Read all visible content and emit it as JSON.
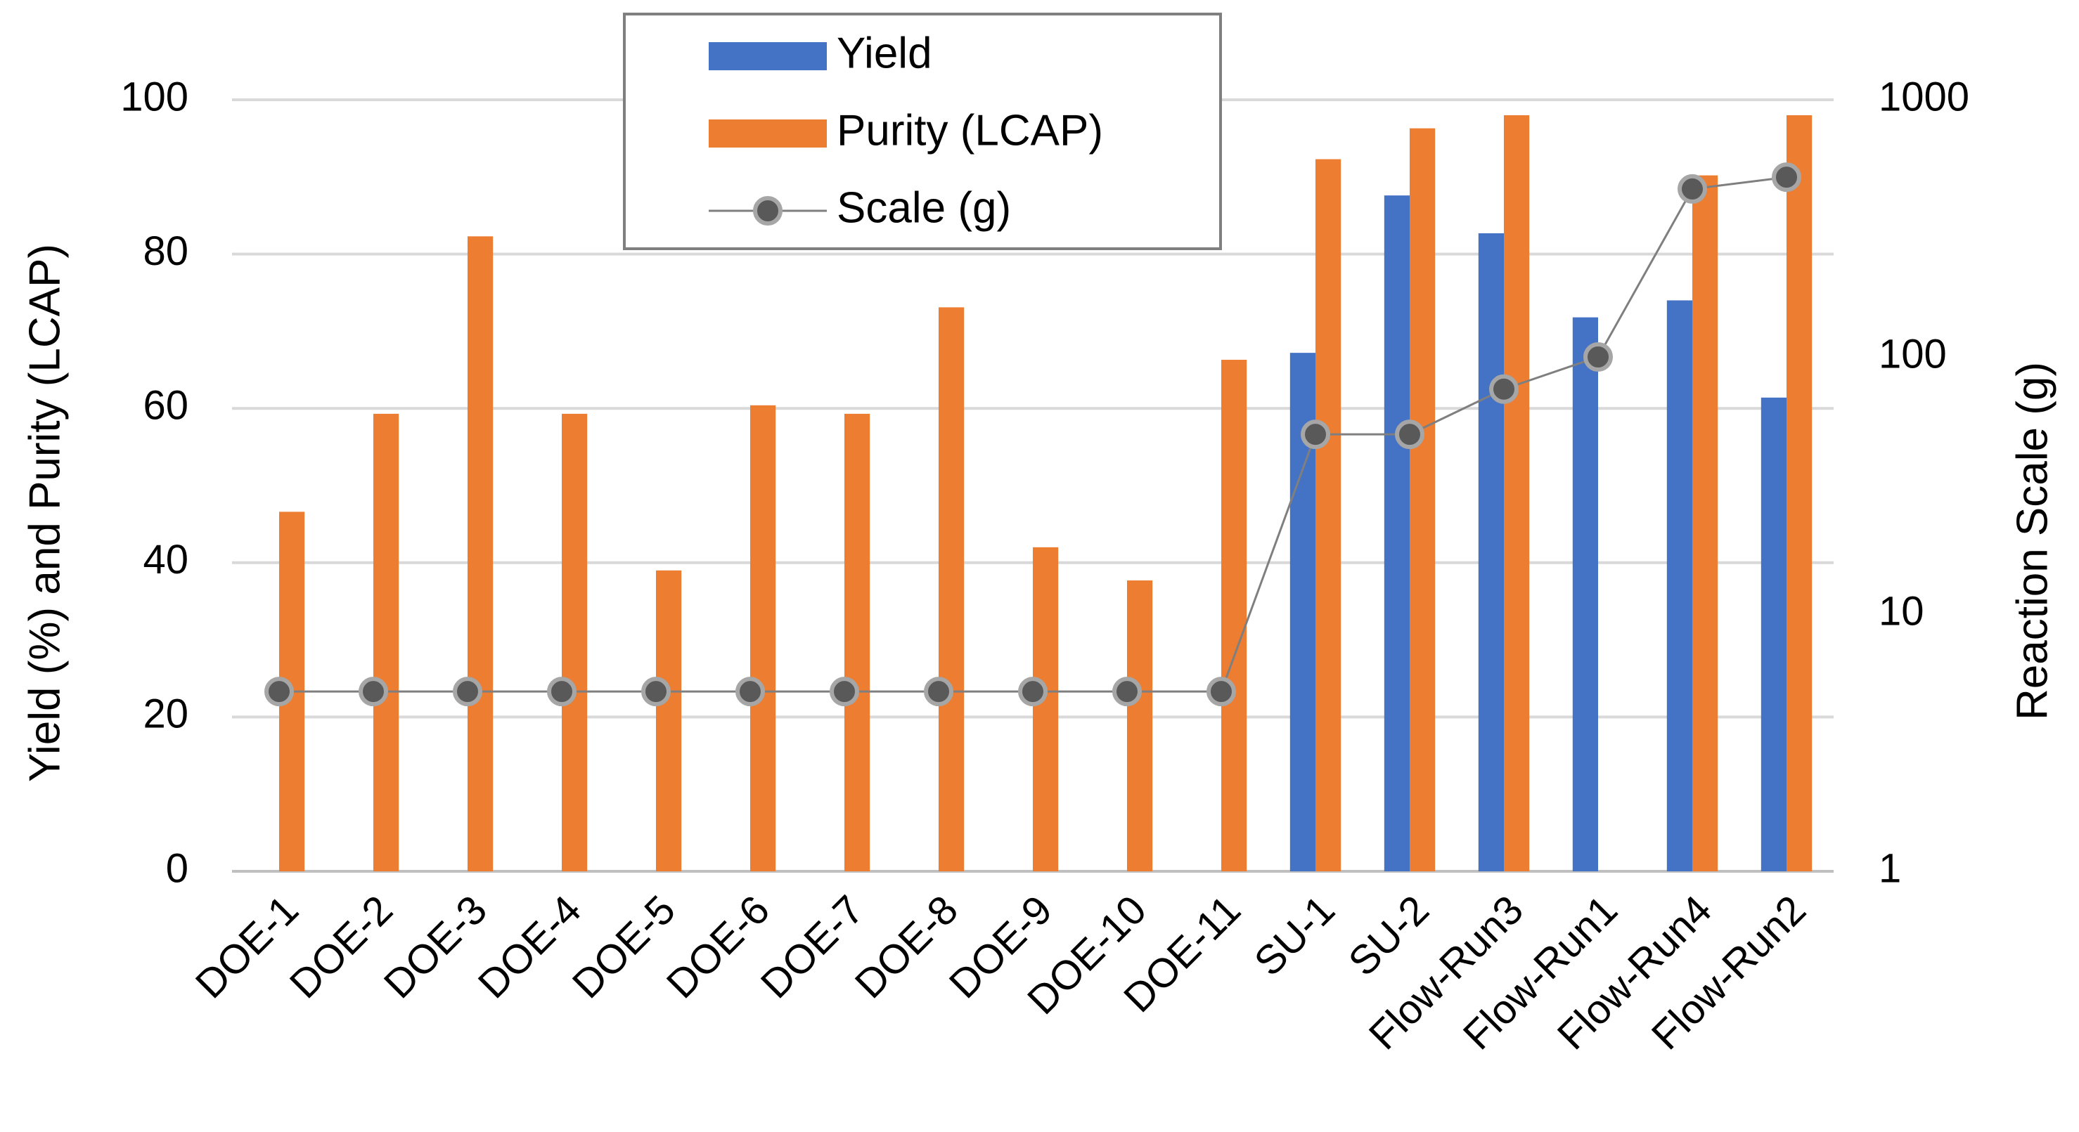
{
  "chart_data": {
    "type": "bar",
    "categories": [
      "DOE-1",
      "DOE-2",
      "DOE-3",
      "DOE-4",
      "DOE-5",
      "DOE-6",
      "DOE-7",
      "DOE-8",
      "DOE-9",
      "DOE-10",
      "DOE-11",
      "SU-1",
      "SU-2",
      "Flow-Run3",
      "Flow-Run1",
      "Flow-Run4",
      "Flow-Run2"
    ],
    "series": [
      {
        "name": "Yield",
        "type": "bar",
        "axis": "left",
        "color": "#4472C4",
        "values": [
          null,
          null,
          null,
          null,
          null,
          null,
          null,
          null,
          null,
          null,
          null,
          67.2,
          87.6,
          82.7,
          71.8,
          74.0,
          61.4
        ]
      },
      {
        "name": "Purity (LCAP)",
        "type": "bar",
        "axis": "left",
        "color": "#ED7D31",
        "values": [
          46.6,
          59.3,
          82.3,
          59.3,
          39.0,
          60.4,
          59.3,
          73.1,
          42.0,
          37.7,
          66.3,
          92.3,
          96.3,
          98.0,
          null,
          90.2,
          98.0
        ]
      },
      {
        "name": "Scale (g)",
        "type": "line",
        "axis": "right",
        "color": "#7F7F7F",
        "values": [
          5,
          5,
          5,
          5,
          5,
          5,
          5,
          5,
          5,
          5,
          5,
          50,
          50,
          75,
          100,
          450,
          500
        ]
      }
    ],
    "xlabel": "",
    "ylabel": "Yield (%) and Purity (LCAP)",
    "y2label": "Reaction Scale (g)",
    "ylim": [
      0,
      100
    ],
    "yticks": [
      "0",
      "20",
      "40",
      "60",
      "80",
      "100"
    ],
    "y2lim": [
      1,
      1000
    ],
    "y2scale": "log",
    "y2ticks": [
      "1",
      "10",
      "100",
      "1000"
    ],
    "grid": true,
    "legend": "top-center"
  }
}
